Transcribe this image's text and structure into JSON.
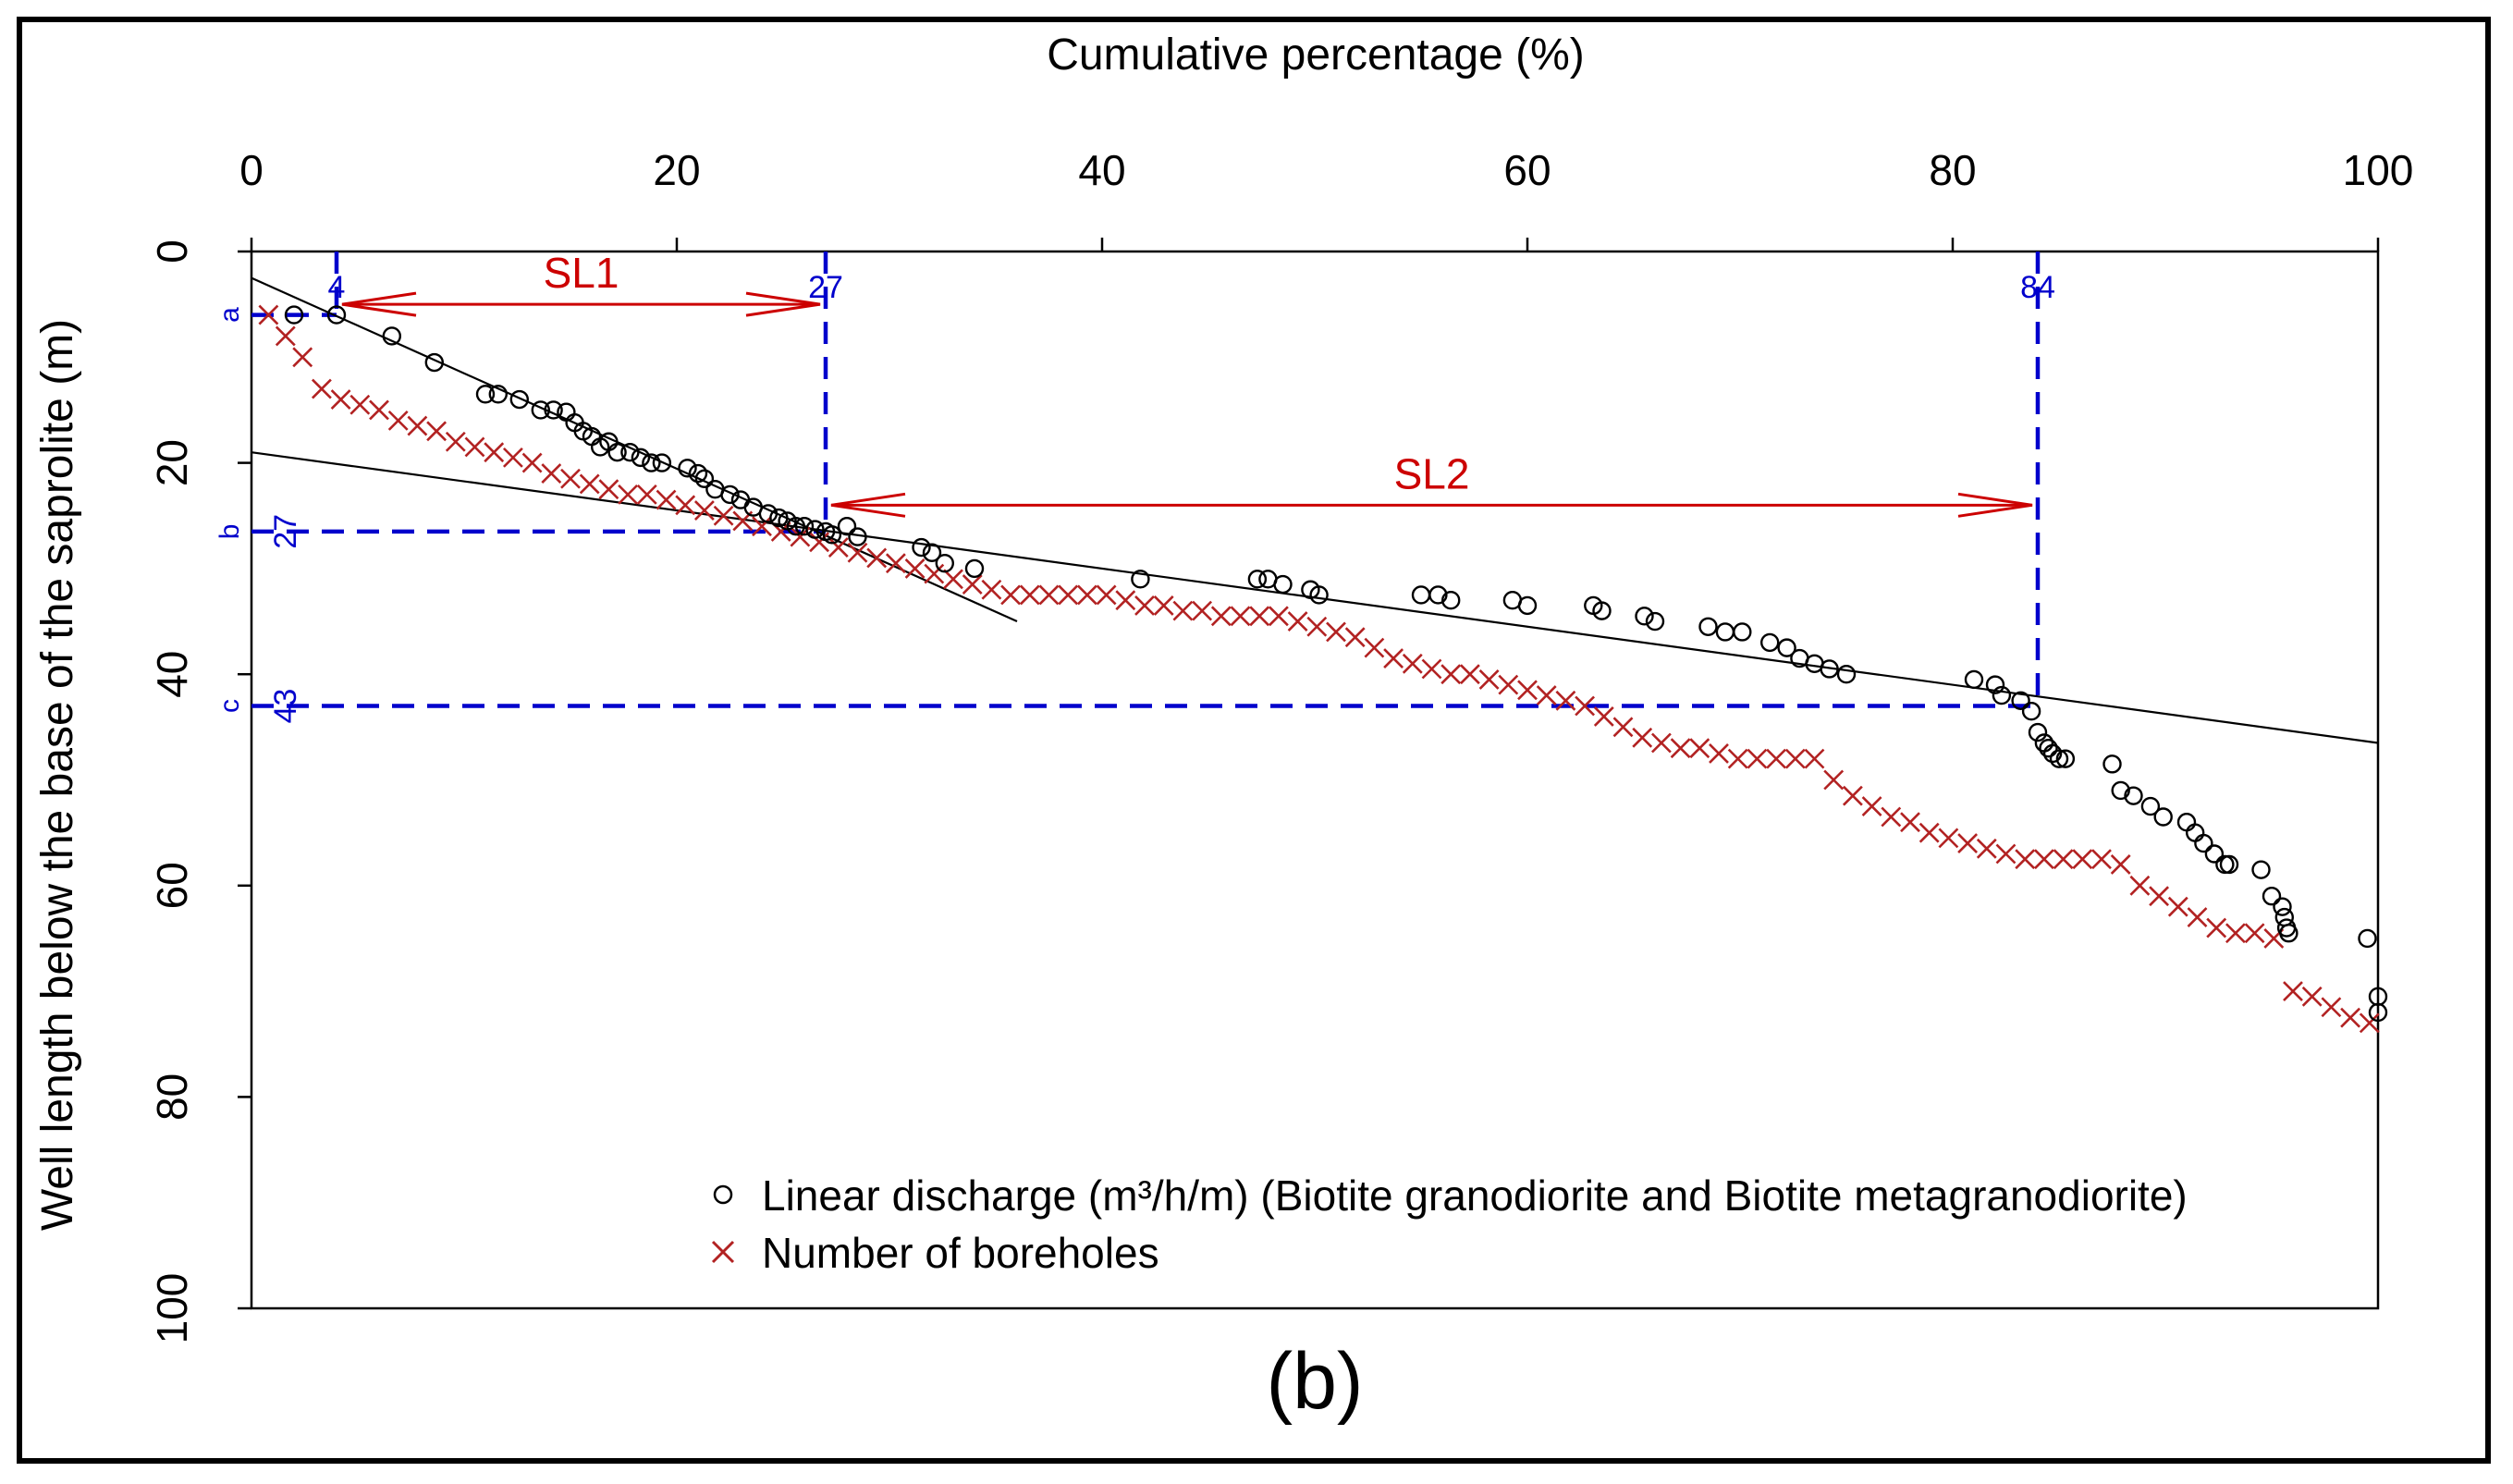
{
  "chart_data": {
    "type": "scatter",
    "panel_label": "(b)",
    "xlabel": "Cumulative percentage (%)",
    "ylabel": "Well length below the base of the saprolite (m)",
    "xlim": [
      0,
      100
    ],
    "ylim": [
      0,
      100
    ],
    "x_axis_position": "top",
    "y_axis_inverted": true,
    "xticks": [
      0,
      20,
      40,
      60,
      80,
      100
    ],
    "yticks": [
      0,
      20,
      40,
      60,
      80,
      100
    ],
    "legend": {
      "placement": "bottom-right",
      "entries": [
        {
          "label": "Linear discharge (m³/h/m) (Biotite granodiorite and Biotite metagranodiorite)",
          "marker": "circle",
          "color": "#000000"
        },
        {
          "label": "Number of boreholes",
          "marker": "cross",
          "color": "#b22222"
        }
      ]
    },
    "series": [
      {
        "name": "Linear discharge (m³/h/m) (Biotite granodiorite and Biotite metagranodiorite)",
        "marker": "circle",
        "color": "#000000",
        "points": [
          [
            2,
            6
          ],
          [
            4,
            6
          ],
          [
            6.6,
            8
          ],
          [
            8.6,
            10.5
          ],
          [
            11,
            13.5
          ],
          [
            11.6,
            13.5
          ],
          [
            12.6,
            14
          ],
          [
            13.6,
            15
          ],
          [
            14.2,
            15
          ],
          [
            14.8,
            15.2
          ],
          [
            15.2,
            16.2
          ],
          [
            15.6,
            17
          ],
          [
            16,
            17.5
          ],
          [
            16.4,
            18.5
          ],
          [
            16.8,
            18
          ],
          [
            17.2,
            19
          ],
          [
            17.8,
            19
          ],
          [
            18.3,
            19.5
          ],
          [
            18.8,
            20
          ],
          [
            19.3,
            20
          ],
          [
            20.5,
            20.5
          ],
          [
            21,
            21
          ],
          [
            21.3,
            21.5
          ],
          [
            21.8,
            22.5
          ],
          [
            22.5,
            23
          ],
          [
            23,
            23.5
          ],
          [
            23.6,
            24.2
          ],
          [
            24.3,
            24.8
          ],
          [
            24.8,
            25.2
          ],
          [
            25.2,
            25.5
          ],
          [
            25.6,
            26
          ],
          [
            26,
            26
          ],
          [
            26.5,
            26.3
          ],
          [
            27,
            26.5
          ],
          [
            27.3,
            26.8
          ],
          [
            28,
            26
          ],
          [
            28.5,
            27
          ],
          [
            31.5,
            28
          ],
          [
            32,
            28.5
          ],
          [
            32.6,
            29.5
          ],
          [
            34,
            30
          ],
          [
            41.8,
            31
          ],
          [
            47.3,
            31
          ],
          [
            47.8,
            31
          ],
          [
            48.5,
            31.5
          ],
          [
            49.8,
            32
          ],
          [
            50.2,
            32.5
          ],
          [
            55,
            32.5
          ],
          [
            55.8,
            32.5
          ],
          [
            56.4,
            33
          ],
          [
            59.3,
            33
          ],
          [
            60,
            33.5
          ],
          [
            63.1,
            33.5
          ],
          [
            63.5,
            34
          ],
          [
            65.5,
            34.5
          ],
          [
            66,
            35
          ],
          [
            68.5,
            35.5
          ],
          [
            69.3,
            36
          ],
          [
            70.1,
            36
          ],
          [
            71.4,
            37
          ],
          [
            72.2,
            37.5
          ],
          [
            72.8,
            38.5
          ],
          [
            73.5,
            39
          ],
          [
            74.2,
            39.5
          ],
          [
            75,
            40
          ],
          [
            81,
            40.5
          ],
          [
            82,
            41
          ],
          [
            82.3,
            42
          ],
          [
            83.2,
            42.5
          ],
          [
            83.7,
            43.5
          ],
          [
            84,
            45.5
          ],
          [
            84.3,
            46.5
          ],
          [
            84.5,
            47
          ],
          [
            84.7,
            47.5
          ],
          [
            85,
            48
          ],
          [
            85.3,
            48
          ],
          [
            87.5,
            48.5
          ],
          [
            87.9,
            51
          ],
          [
            88.5,
            51.5
          ],
          [
            89.3,
            52.5
          ],
          [
            89.9,
            53.5
          ],
          [
            91,
            54
          ],
          [
            91.4,
            55
          ],
          [
            91.8,
            56
          ],
          [
            92.3,
            57
          ],
          [
            92.8,
            58
          ],
          [
            93,
            58
          ],
          [
            94.5,
            58.5
          ],
          [
            95,
            61
          ],
          [
            95.5,
            62
          ],
          [
            95.6,
            63
          ],
          [
            95.7,
            64
          ],
          [
            95.8,
            64.5
          ],
          [
            99.5,
            65
          ],
          [
            100,
            70.5
          ],
          [
            100,
            72
          ]
        ]
      },
      {
        "name": "Number of boreholes",
        "marker": "cross",
        "color": "#b22222",
        "points": [
          [
            0.8,
            6
          ],
          [
            1.6,
            8
          ],
          [
            2.4,
            10
          ],
          [
            3.3,
            13
          ],
          [
            4.2,
            14
          ],
          [
            5.1,
            14.5
          ],
          [
            6,
            15
          ],
          [
            6.9,
            16
          ],
          [
            7.8,
            16.5
          ],
          [
            8.7,
            17
          ],
          [
            9.6,
            18
          ],
          [
            10.5,
            18.5
          ],
          [
            11.4,
            19
          ],
          [
            12.3,
            19.5
          ],
          [
            13.2,
            20
          ],
          [
            14.1,
            21
          ],
          [
            15,
            21.5
          ],
          [
            15.9,
            22
          ],
          [
            16.8,
            22.5
          ],
          [
            17.7,
            23
          ],
          [
            18.6,
            23
          ],
          [
            19.5,
            23.5
          ],
          [
            20.4,
            24
          ],
          [
            21.3,
            24.5
          ],
          [
            22.2,
            25
          ],
          [
            23.1,
            25.5
          ],
          [
            24,
            26
          ],
          [
            24.9,
            26.5
          ],
          [
            25.8,
            27
          ],
          [
            26.7,
            27.5
          ],
          [
            27.6,
            28
          ],
          [
            28.5,
            28.5
          ],
          [
            29.4,
            29
          ],
          [
            30.3,
            29.5
          ],
          [
            31.2,
            30
          ],
          [
            32.1,
            30.5
          ],
          [
            33,
            31
          ],
          [
            33.9,
            31.5
          ],
          [
            34.8,
            32
          ],
          [
            35.7,
            32.5
          ],
          [
            36.6,
            32.5
          ],
          [
            37.5,
            32.5
          ],
          [
            38.4,
            32.5
          ],
          [
            39.3,
            32.5
          ],
          [
            40.2,
            32.5
          ],
          [
            41.1,
            33
          ],
          [
            42,
            33.5
          ],
          [
            42.9,
            33.5
          ],
          [
            43.8,
            34
          ],
          [
            44.7,
            34
          ],
          [
            45.6,
            34.5
          ],
          [
            46.5,
            34.5
          ],
          [
            47.4,
            34.5
          ],
          [
            48.3,
            34.5
          ],
          [
            49.2,
            35
          ],
          [
            50.1,
            35.5
          ],
          [
            51,
            36
          ],
          [
            51.9,
            36.5
          ],
          [
            52.8,
            37.5
          ],
          [
            53.7,
            38.5
          ],
          [
            54.6,
            39
          ],
          [
            55.5,
            39.5
          ],
          [
            56.4,
            40
          ],
          [
            57.3,
            40
          ],
          [
            58.2,
            40.5
          ],
          [
            59.1,
            41
          ],
          [
            60,
            41.5
          ],
          [
            60.9,
            42
          ],
          [
            61.8,
            42.5
          ],
          [
            62.7,
            43
          ],
          [
            63.6,
            44
          ],
          [
            64.5,
            45
          ],
          [
            65.4,
            46
          ],
          [
            66.3,
            46.5
          ],
          [
            67.2,
            47
          ],
          [
            68.1,
            47
          ],
          [
            69,
            47.5
          ],
          [
            69.9,
            48
          ],
          [
            70.8,
            48
          ],
          [
            71.7,
            48
          ],
          [
            72.6,
            48
          ],
          [
            73.5,
            48
          ],
          [
            74.4,
            50
          ],
          [
            75.3,
            51.5
          ],
          [
            76.2,
            52.5
          ],
          [
            77.1,
            53.5
          ],
          [
            78,
            54
          ],
          [
            78.9,
            55
          ],
          [
            79.8,
            55.5
          ],
          [
            80.7,
            56
          ],
          [
            81.6,
            56.5
          ],
          [
            82.5,
            57
          ],
          [
            83.4,
            57.5
          ],
          [
            84.3,
            57.5
          ],
          [
            85.2,
            57.5
          ],
          [
            86.1,
            57.5
          ],
          [
            87,
            57.5
          ],
          [
            87.9,
            58
          ],
          [
            88.8,
            60
          ],
          [
            89.7,
            61
          ],
          [
            90.6,
            62
          ],
          [
            91.5,
            63
          ],
          [
            92.4,
            64
          ],
          [
            93.3,
            64.5
          ],
          [
            94.2,
            64.5
          ],
          [
            95.1,
            65
          ],
          [
            96,
            70
          ],
          [
            96.9,
            70.5
          ],
          [
            97.8,
            71.5
          ],
          [
            98.7,
            72.5
          ],
          [
            99.6,
            73
          ]
        ]
      }
    ],
    "fit_lines": [
      {
        "name": "SL1 fit",
        "from": [
          0,
          2.5
        ],
        "to": [
          36,
          35
        ]
      },
      {
        "name": "SL2 fit",
        "from": [
          0,
          19
        ],
        "to": [
          100,
          46.5
        ]
      }
    ],
    "reference_lines": {
      "vertical": [
        {
          "x": 4,
          "label": "4",
          "from_y": 0,
          "to_y": 6
        },
        {
          "x": 27,
          "label": "27",
          "from_y": 0,
          "to_y": 26.5
        },
        {
          "x": 84,
          "label": "84",
          "from_y": 0,
          "to_y": 43
        }
      ],
      "horizontal": [
        {
          "y": 6,
          "label": "a",
          "to_x": 4
        },
        {
          "y": 26.5,
          "label": "b",
          "value_label": "27",
          "to_x": 27
        },
        {
          "y": 43,
          "label": "c",
          "value_label": "43",
          "to_x": 84
        }
      ]
    },
    "segments": [
      {
        "label": "SL1",
        "from_x": 4,
        "to_x": 27,
        "y": 5
      },
      {
        "label": "SL2",
        "from_x": 27,
        "to_x": 84,
        "y": 24
      }
    ],
    "colors": {
      "axis": "#000000",
      "guide": "#0000cc",
      "segment": "#cc0000",
      "cross": "#b22222"
    }
  }
}
